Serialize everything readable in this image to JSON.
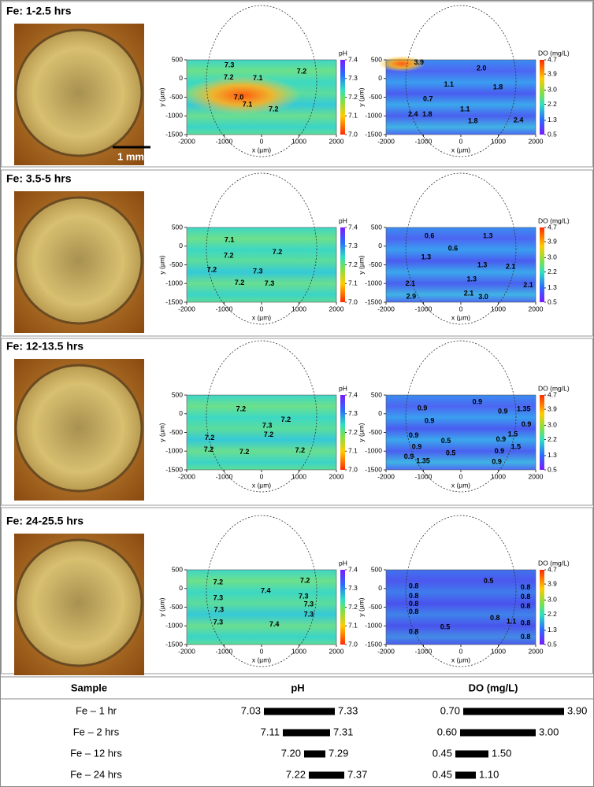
{
  "panels": [
    {
      "title": "Fe: 1-2.5 hrs",
      "scale_label": "1 mm",
      "maps": [
        {
          "type": "heatmap",
          "xlabel": "x (µm)",
          "ylabel": "y (µm)",
          "colorbar_label": "pH",
          "xlim": [
            -2000,
            2000
          ],
          "ylim": [
            -1500,
            500
          ],
          "xticks": [
            -2000,
            -1000,
            0,
            1000,
            2000
          ],
          "yticks": [
            -1500,
            -1000,
            -500,
            0,
            500
          ],
          "clim": [
            7.0,
            7.4
          ],
          "cticks": [
            {
              "value": 7,
              "label": "7.0"
            },
            7.1,
            7.2,
            7.3,
            7.4
          ],
          "annotations": [
            {
              "x": -860,
              "y": 350,
              "label": "7.3"
            },
            {
              "x": 1070,
              "y": 180,
              "label": "7.2"
            },
            {
              "x": -880,
              "y": 20,
              "label": "7.2"
            },
            {
              "x": -100,
              "y": 0,
              "label": "7.1"
            },
            {
              "x": -610,
              "y": -510,
              "label": "7.0"
            },
            {
              "x": -380,
              "y": -700,
              "label": "7.1"
            },
            {
              "x": 320,
              "y": -830,
              "label": "7.2"
            }
          ]
        },
        {
          "type": "heatmap",
          "xlabel": "x (µm)",
          "ylabel": "y (µm)",
          "colorbar_label": "DO (mg/L)",
          "xlim": [
            -2000,
            2000
          ],
          "ylim": [
            -1500,
            500
          ],
          "xticks": [
            -2000,
            -1000,
            0,
            1000,
            2000
          ],
          "yticks": [
            -1500,
            -1000,
            -500,
            0,
            500
          ],
          "clim": [
            0.5,
            4.7
          ],
          "cticks": [
            0.5,
            1.3,
            2.2,
            {
              "value": 3,
              "label": "3.0"
            },
            3.9,
            4.7
          ],
          "annotations": [
            {
              "x": -1120,
              "y": 420,
              "label": "3.9"
            },
            {
              "x": 550,
              "y": 270,
              "label": "2.0"
            },
            {
              "x": -320,
              "y": -170,
              "label": "1.1"
            },
            {
              "x": 990,
              "y": -240,
              "label": "1.8"
            },
            {
              "x": -880,
              "y": -550,
              "label": "0.7"
            },
            {
              "x": 110,
              "y": -830,
              "label": "1.1"
            },
            {
              "x": -1280,
              "y": -970,
              "label": "2.4"
            },
            {
              "x": -900,
              "y": -970,
              "label": "1.8"
            },
            {
              "x": 320,
              "y": -1140,
              "label": "1.8"
            },
            {
              "x": 1540,
              "y": -1120,
              "label": "2.4"
            }
          ]
        }
      ]
    },
    {
      "title": "Fe: 3.5-5 hrs",
      "maps": [
        {
          "type": "heatmap",
          "xlabel": "x (µm)",
          "ylabel": "y (µm)",
          "colorbar_label": "pH",
          "xlim": [
            -2000,
            2000
          ],
          "ylim": [
            -1500,
            500
          ],
          "xticks": [
            -2000,
            -1000,
            0,
            1000,
            2000
          ],
          "yticks": [
            -1500,
            -1000,
            -500,
            0,
            500
          ],
          "clim": [
            7.0,
            7.4
          ],
          "cticks": [
            {
              "value": 7,
              "label": "7.0"
            },
            7.1,
            7.2,
            7.3,
            7.4
          ],
          "annotations": [
            {
              "x": -860,
              "y": 163,
              "label": "7.1"
            },
            {
              "x": -880,
              "y": -260,
              "label": "7.2"
            },
            {
              "x": 420,
              "y": -170,
              "label": "7.2"
            },
            {
              "x": -1330,
              "y": -640,
              "label": "7.2"
            },
            {
              "x": -100,
              "y": -680,
              "label": "7.3"
            },
            {
              "x": -590,
              "y": -990,
              "label": "7.2"
            },
            {
              "x": 210,
              "y": -1010,
              "label": "7.3"
            }
          ]
        },
        {
          "type": "heatmap",
          "xlabel": "x (µm)",
          "ylabel": "y (µm)",
          "colorbar_label": "DO (mg/L)",
          "xlim": [
            -2000,
            2000
          ],
          "ylim": [
            -1500,
            500
          ],
          "xticks": [
            -2000,
            -1000,
            0,
            1000,
            2000
          ],
          "yticks": [
            -1500,
            -1000,
            -500,
            0,
            500
          ],
          "clim": [
            0.5,
            4.7
          ],
          "cticks": [
            0.5,
            1.3,
            2.2,
            {
              "value": 3,
              "label": "3.0"
            },
            3.9,
            4.7
          ],
          "annotations": [
            {
              "x": -840,
              "y": 270,
              "label": "0.6"
            },
            {
              "x": 720,
              "y": 270,
              "label": "1.3"
            },
            {
              "x": -210,
              "y": -70,
              "label": "0.6"
            },
            {
              "x": -930,
              "y": -300,
              "label": "1.3"
            },
            {
              "x": 570,
              "y": -510,
              "label": "1.3"
            },
            {
              "x": 1330,
              "y": -550,
              "label": "2.1"
            },
            {
              "x": 290,
              "y": -890,
              "label": "1.3"
            },
            {
              "x": -1350,
              "y": -1010,
              "label": "2.1"
            },
            {
              "x": 1800,
              "y": -1050,
              "label": "2.1"
            },
            {
              "x": -1330,
              "y": -1350,
              "label": "2.9"
            },
            {
              "x": 210,
              "y": -1270,
              "label": "2.1"
            },
            {
              "x": 600,
              "y": -1370,
              "label": "3.0"
            }
          ]
        }
      ]
    },
    {
      "title": "Fe: 12-13.5 hrs",
      "maps": [
        {
          "type": "heatmap",
          "xlabel": "x (µm)",
          "ylabel": "y (µm)",
          "colorbar_label": "pH",
          "xlim": [
            -2000,
            2000
          ],
          "ylim": [
            -1500,
            500
          ],
          "xticks": [
            -2000,
            -1000,
            0,
            1000,
            2000
          ],
          "yticks": [
            -1500,
            -1000,
            -500,
            0,
            500
          ],
          "clim": [
            7.0,
            7.4
          ],
          "cticks": [
            {
              "value": 7,
              "label": "7.0"
            },
            7.1,
            7.2,
            7.3,
            7.4
          ],
          "annotations": [
            {
              "x": -550,
              "y": 120,
              "label": "7.2"
            },
            {
              "x": 650,
              "y": -170,
              "label": "7.2"
            },
            {
              "x": 150,
              "y": -320,
              "label": "7.3"
            },
            {
              "x": 190,
              "y": -570,
              "label": "7.2"
            },
            {
              "x": -1390,
              "y": -650,
              "label": "7.2"
            },
            {
              "x": -1410,
              "y": -970,
              "label": "7.2"
            },
            {
              "x": -460,
              "y": -1030,
              "label": "7.2"
            },
            {
              "x": 1030,
              "y": -990,
              "label": "7.2"
            }
          ]
        },
        {
          "type": "heatmap",
          "xlabel": "x (µm)",
          "ylabel": "y (µm)",
          "colorbar_label": "DO (mg/L)",
          "xlim": [
            -2000,
            2000
          ],
          "ylim": [
            -1500,
            500
          ],
          "xticks": [
            -2000,
            -1000,
            0,
            1000,
            2000
          ],
          "yticks": [
            -1500,
            -1000,
            -500,
            0,
            500
          ],
          "clim": [
            0.5,
            4.7
          ],
          "cticks": [
            0.5,
            1.3,
            2.2,
            {
              "value": 3,
              "label": "3.0"
            },
            3.9,
            4.7
          ],
          "annotations": [
            {
              "x": 440,
              "y": 310,
              "label": "0.9"
            },
            {
              "x": -1030,
              "y": 140,
              "label": "0.9"
            },
            {
              "x": 1120,
              "y": 60,
              "label": "0.9"
            },
            {
              "x": 1680,
              "y": 120,
              "label": "1.35"
            },
            {
              "x": -840,
              "y": -200,
              "label": "0.9"
            },
            {
              "x": 1750,
              "y": -290,
              "label": "0.9"
            },
            {
              "x": 1390,
              "y": -560,
              "label": "1.5"
            },
            {
              "x": -1260,
              "y": -590,
              "label": "0.9"
            },
            {
              "x": -400,
              "y": -730,
              "label": "0.5"
            },
            {
              "x": 1070,
              "y": -690,
              "label": "0.9"
            },
            {
              "x": 1470,
              "y": -890,
              "label": "1.5"
            },
            {
              "x": -1180,
              "y": -890,
              "label": "0.9"
            },
            {
              "x": -270,
              "y": -1060,
              "label": "0.5"
            },
            {
              "x": 1030,
              "y": -1010,
              "label": "0.9"
            },
            {
              "x": -1390,
              "y": -1160,
              "label": "0.9"
            },
            {
              "x": -1010,
              "y": -1270,
              "label": "1.35"
            },
            {
              "x": 960,
              "y": -1290,
              "label": "0.9"
            }
          ]
        }
      ]
    },
    {
      "title": "Fe: 24-25.5 hrs",
      "maps": [
        {
          "type": "heatmap",
          "xlabel": "x (µm)",
          "ylabel": "y (µm)",
          "colorbar_label": "pH",
          "xlim": [
            -2000,
            2000
          ],
          "ylim": [
            -1500,
            500
          ],
          "xticks": [
            -2000,
            -1000,
            0,
            1000,
            2000
          ],
          "yticks": [
            -1500,
            -1000,
            -500,
            0,
            500
          ],
          "clim": [
            7.0,
            7.4
          ],
          "cticks": [
            {
              "value": 7,
              "label": "7.0"
            },
            7.1,
            7.2,
            7.3,
            7.4
          ],
          "annotations": [
            {
              "x": -1160,
              "y": 160,
              "label": "7.2"
            },
            {
              "x": 110,
              "y": -70,
              "label": "7.4"
            },
            {
              "x": 1160,
              "y": 200,
              "label": "7.2"
            },
            {
              "x": -1160,
              "y": -260,
              "label": "7.3"
            },
            {
              "x": 1120,
              "y": -220,
              "label": "7.3"
            },
            {
              "x": -1140,
              "y": -580,
              "label": "7.3"
            },
            {
              "x": 1260,
              "y": -430,
              "label": "7.3"
            },
            {
              "x": 1260,
              "y": -700,
              "label": "7.3"
            },
            {
              "x": -1160,
              "y": -910,
              "label": "7.3"
            },
            {
              "x": 340,
              "y": -970,
              "label": "7.4"
            }
          ]
        },
        {
          "type": "heatmap",
          "xlabel": "x (µm)",
          "ylabel": "y (µm)",
          "colorbar_label": "DO (mg/L)",
          "xlim": [
            -2000,
            2000
          ],
          "ylim": [
            -1500,
            500
          ],
          "xticks": [
            -2000,
            -1000,
            0,
            1000,
            2000
          ],
          "yticks": [
            -1500,
            -1000,
            -500,
            0,
            500
          ],
          "clim": [
            0.5,
            4.7
          ],
          "cticks": [
            0.5,
            1.3,
            2.2,
            {
              "value": 3,
              "label": "3.0"
            },
            3.9,
            4.7
          ],
          "annotations": [
            {
              "x": -1260,
              "y": 60,
              "label": "0.8"
            },
            {
              "x": 740,
              "y": 190,
              "label": "0.5"
            },
            {
              "x": 1730,
              "y": 20,
              "label": "0.8"
            },
            {
              "x": -1260,
              "y": -210,
              "label": "0.8"
            },
            {
              "x": 1730,
              "y": -230,
              "label": "0.8"
            },
            {
              "x": -1260,
              "y": -420,
              "label": "0.8"
            },
            {
              "x": 1730,
              "y": -480,
              "label": "0.8"
            },
            {
              "x": -1260,
              "y": -630,
              "label": "0.8"
            },
            {
              "x": 910,
              "y": -800,
              "label": "0.8"
            },
            {
              "x": 1350,
              "y": -890,
              "label": "1.1"
            },
            {
              "x": 1730,
              "y": -930,
              "label": "0.8"
            },
            {
              "x": -420,
              "y": -1040,
              "label": "0.5"
            },
            {
              "x": -1260,
              "y": -1170,
              "label": "0.8"
            },
            {
              "x": 1730,
              "y": -1300,
              "label": "0.8"
            }
          ]
        }
      ]
    }
  ],
  "table": {
    "header": [
      "Sample",
      "pH",
      "DO (mg/L)"
    ],
    "rows": [
      {
        "sample": "Fe – 1 hr",
        "ph": [
          {
            "value": 7.03,
            "label": "7.03"
          },
          {
            "value": 7.33,
            "label": "7.33"
          }
        ],
        "do": [
          {
            "value": 0.7,
            "label": "0.70"
          },
          {
            "value": 3.9,
            "label": "3.90"
          }
        ]
      },
      {
        "sample": "Fe – 2 hrs",
        "ph": [
          {
            "value": 7.11,
            "label": "7.11"
          },
          {
            "value": 7.31,
            "label": "7.31"
          }
        ],
        "do": [
          {
            "value": 0.6,
            "label": "0.60"
          },
          {
            "value": 3,
            "label": "3.00"
          }
        ]
      },
      {
        "sample": "Fe – 12 hrs",
        "ph": [
          {
            "value": 7.2,
            "label": "7.20"
          },
          {
            "value": 7.29,
            "label": "7.29"
          }
        ],
        "do": [
          {
            "value": 0.45,
            "label": "0.45"
          },
          {
            "value": 1.5,
            "label": "1.50"
          }
        ]
      },
      {
        "sample": "Fe – 24 hrs",
        "ph": [
          {
            "value": 7.22,
            "label": "7.22"
          },
          {
            "value": 7.37,
            "label": "7.37"
          }
        ],
        "do": [
          {
            "value": 0.45,
            "label": "0.45"
          },
          {
            "value": 1.1,
            "label": "1.10"
          }
        ]
      }
    ]
  }
}
